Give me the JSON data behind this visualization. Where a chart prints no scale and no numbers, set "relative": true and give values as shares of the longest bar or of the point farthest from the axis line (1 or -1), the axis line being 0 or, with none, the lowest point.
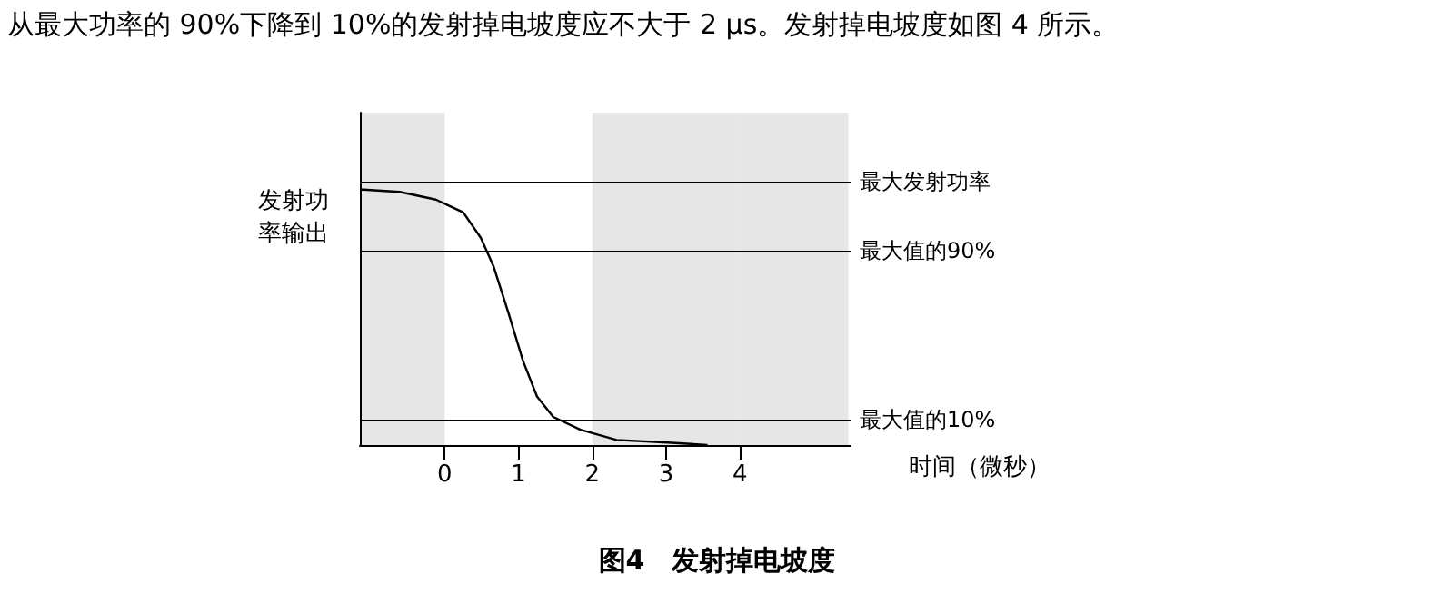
{
  "chart_data": {
    "type": "line",
    "title": "图4　发射掉电坡度",
    "annotations": [
      "从最大功率的 90%下降到 10%的发射掉电坡度应不大于 2 µs。发射掉电坡度如图 4 所示。"
    ],
    "xlabel": "时间（微秒）",
    "ylabel": "发射功率输出",
    "relative": true,
    "x": [
      -1.15,
      -0.61,
      -0.12,
      0.25,
      0.49,
      0.66,
      0.86,
      1.06,
      1.25,
      1.47,
      1.84,
      2.33,
      3.02,
      3.56
    ],
    "series": [
      {
        "color": "#000000",
        "values": [
          1,
          0.99,
          0.96,
          0.91,
          0.81,
          0.7,
          0.52,
          0.33,
          0.19,
          0.11,
          0.06,
          0.02,
          0.01,
          0
        ]
      }
    ],
    "xlim": [
      -1.15,
      5.5
    ],
    "xticks": [
      0,
      1,
      2,
      3,
      4
    ],
    "ref_lines": [
      {
        "axis": "y",
        "value": 1.03,
        "label": "最大发射功率",
        "color": "#000000"
      },
      {
        "axis": "y",
        "value": 0.76,
        "label": "最大值的90%",
        "color": "#000000"
      },
      {
        "axis": "y",
        "value": 0.1,
        "label": "最大值的10%",
        "color": "#000000"
      }
    ],
    "bands": [
      {
        "axis": "x",
        "from": -1.15,
        "to": 0,
        "color": "#e6e6e6"
      },
      {
        "axis": "x",
        "from": 2,
        "to": 4,
        "color": "#e6e6e6"
      },
      {
        "axis": "x",
        "from": 4,
        "to": 5.47,
        "color": "#e6e6e6"
      }
    ],
    "grid": false,
    "marker": "none",
    "line_style": "solid"
  }
}
